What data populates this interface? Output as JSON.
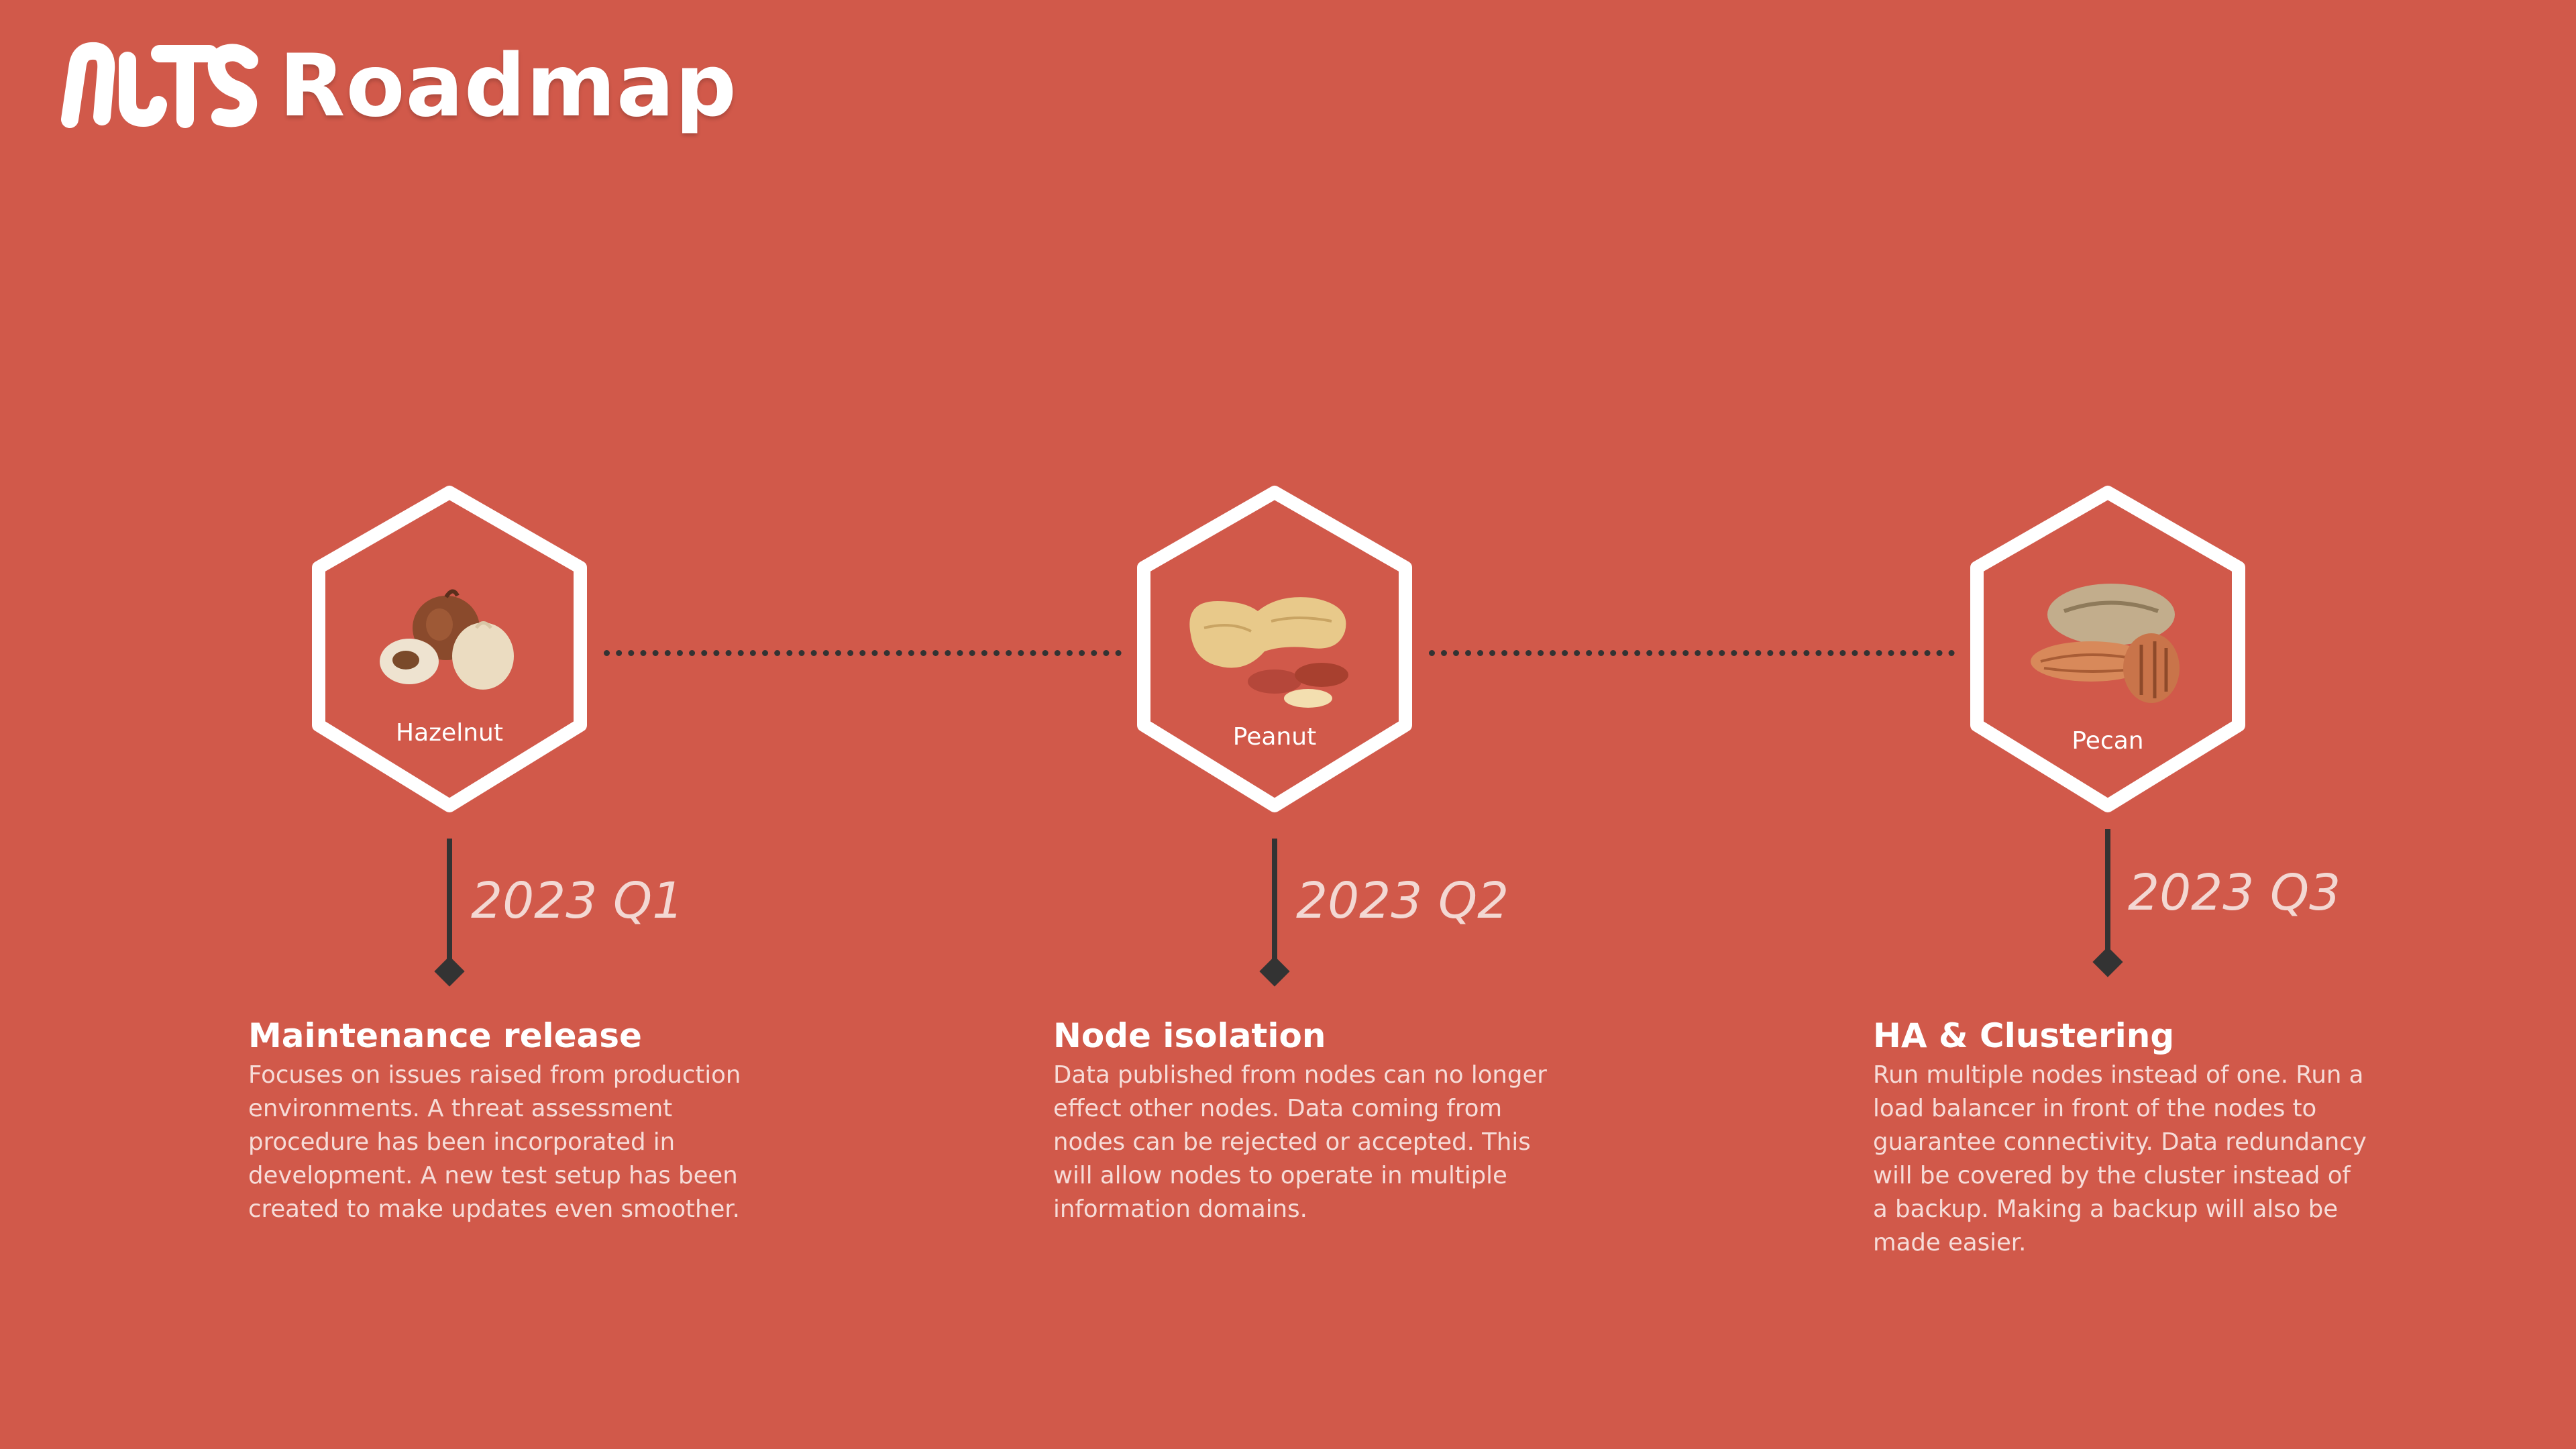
{
  "header": {
    "logo_text": "NUTS",
    "title": "Roadmap"
  },
  "colors": {
    "background": "#d1594a",
    "line": "#333333",
    "hex_stroke": "#ffffff"
  },
  "milestones": [
    {
      "nut": "Hazelnut",
      "icon": "hazelnut-icon",
      "quarter": "2023 Q1",
      "title": "Maintenance release",
      "description": "Focuses on issues raised from production environments. A threat assessment procedure has been incorporated in development. A new test setup has been created to make updates even smoother."
    },
    {
      "nut": "Peanut",
      "icon": "peanut-icon",
      "quarter": "2023 Q2",
      "title": "Node isolation",
      "description": "Data published from nodes can no longer effect other nodes. Data coming from nodes can be rejected or accepted. This will allow nodes to operate in multiple information domains."
    },
    {
      "nut": "Pecan",
      "icon": "pecan-icon",
      "quarter": "2023 Q3",
      "title": "HA & Clustering",
      "description": "Run multiple nodes instead of one. Run a load balancer in front of the nodes to guarantee connectivity. Data redundancy will be covered by the cluster instead of a backup. Making a backup will also be made easier."
    }
  ]
}
